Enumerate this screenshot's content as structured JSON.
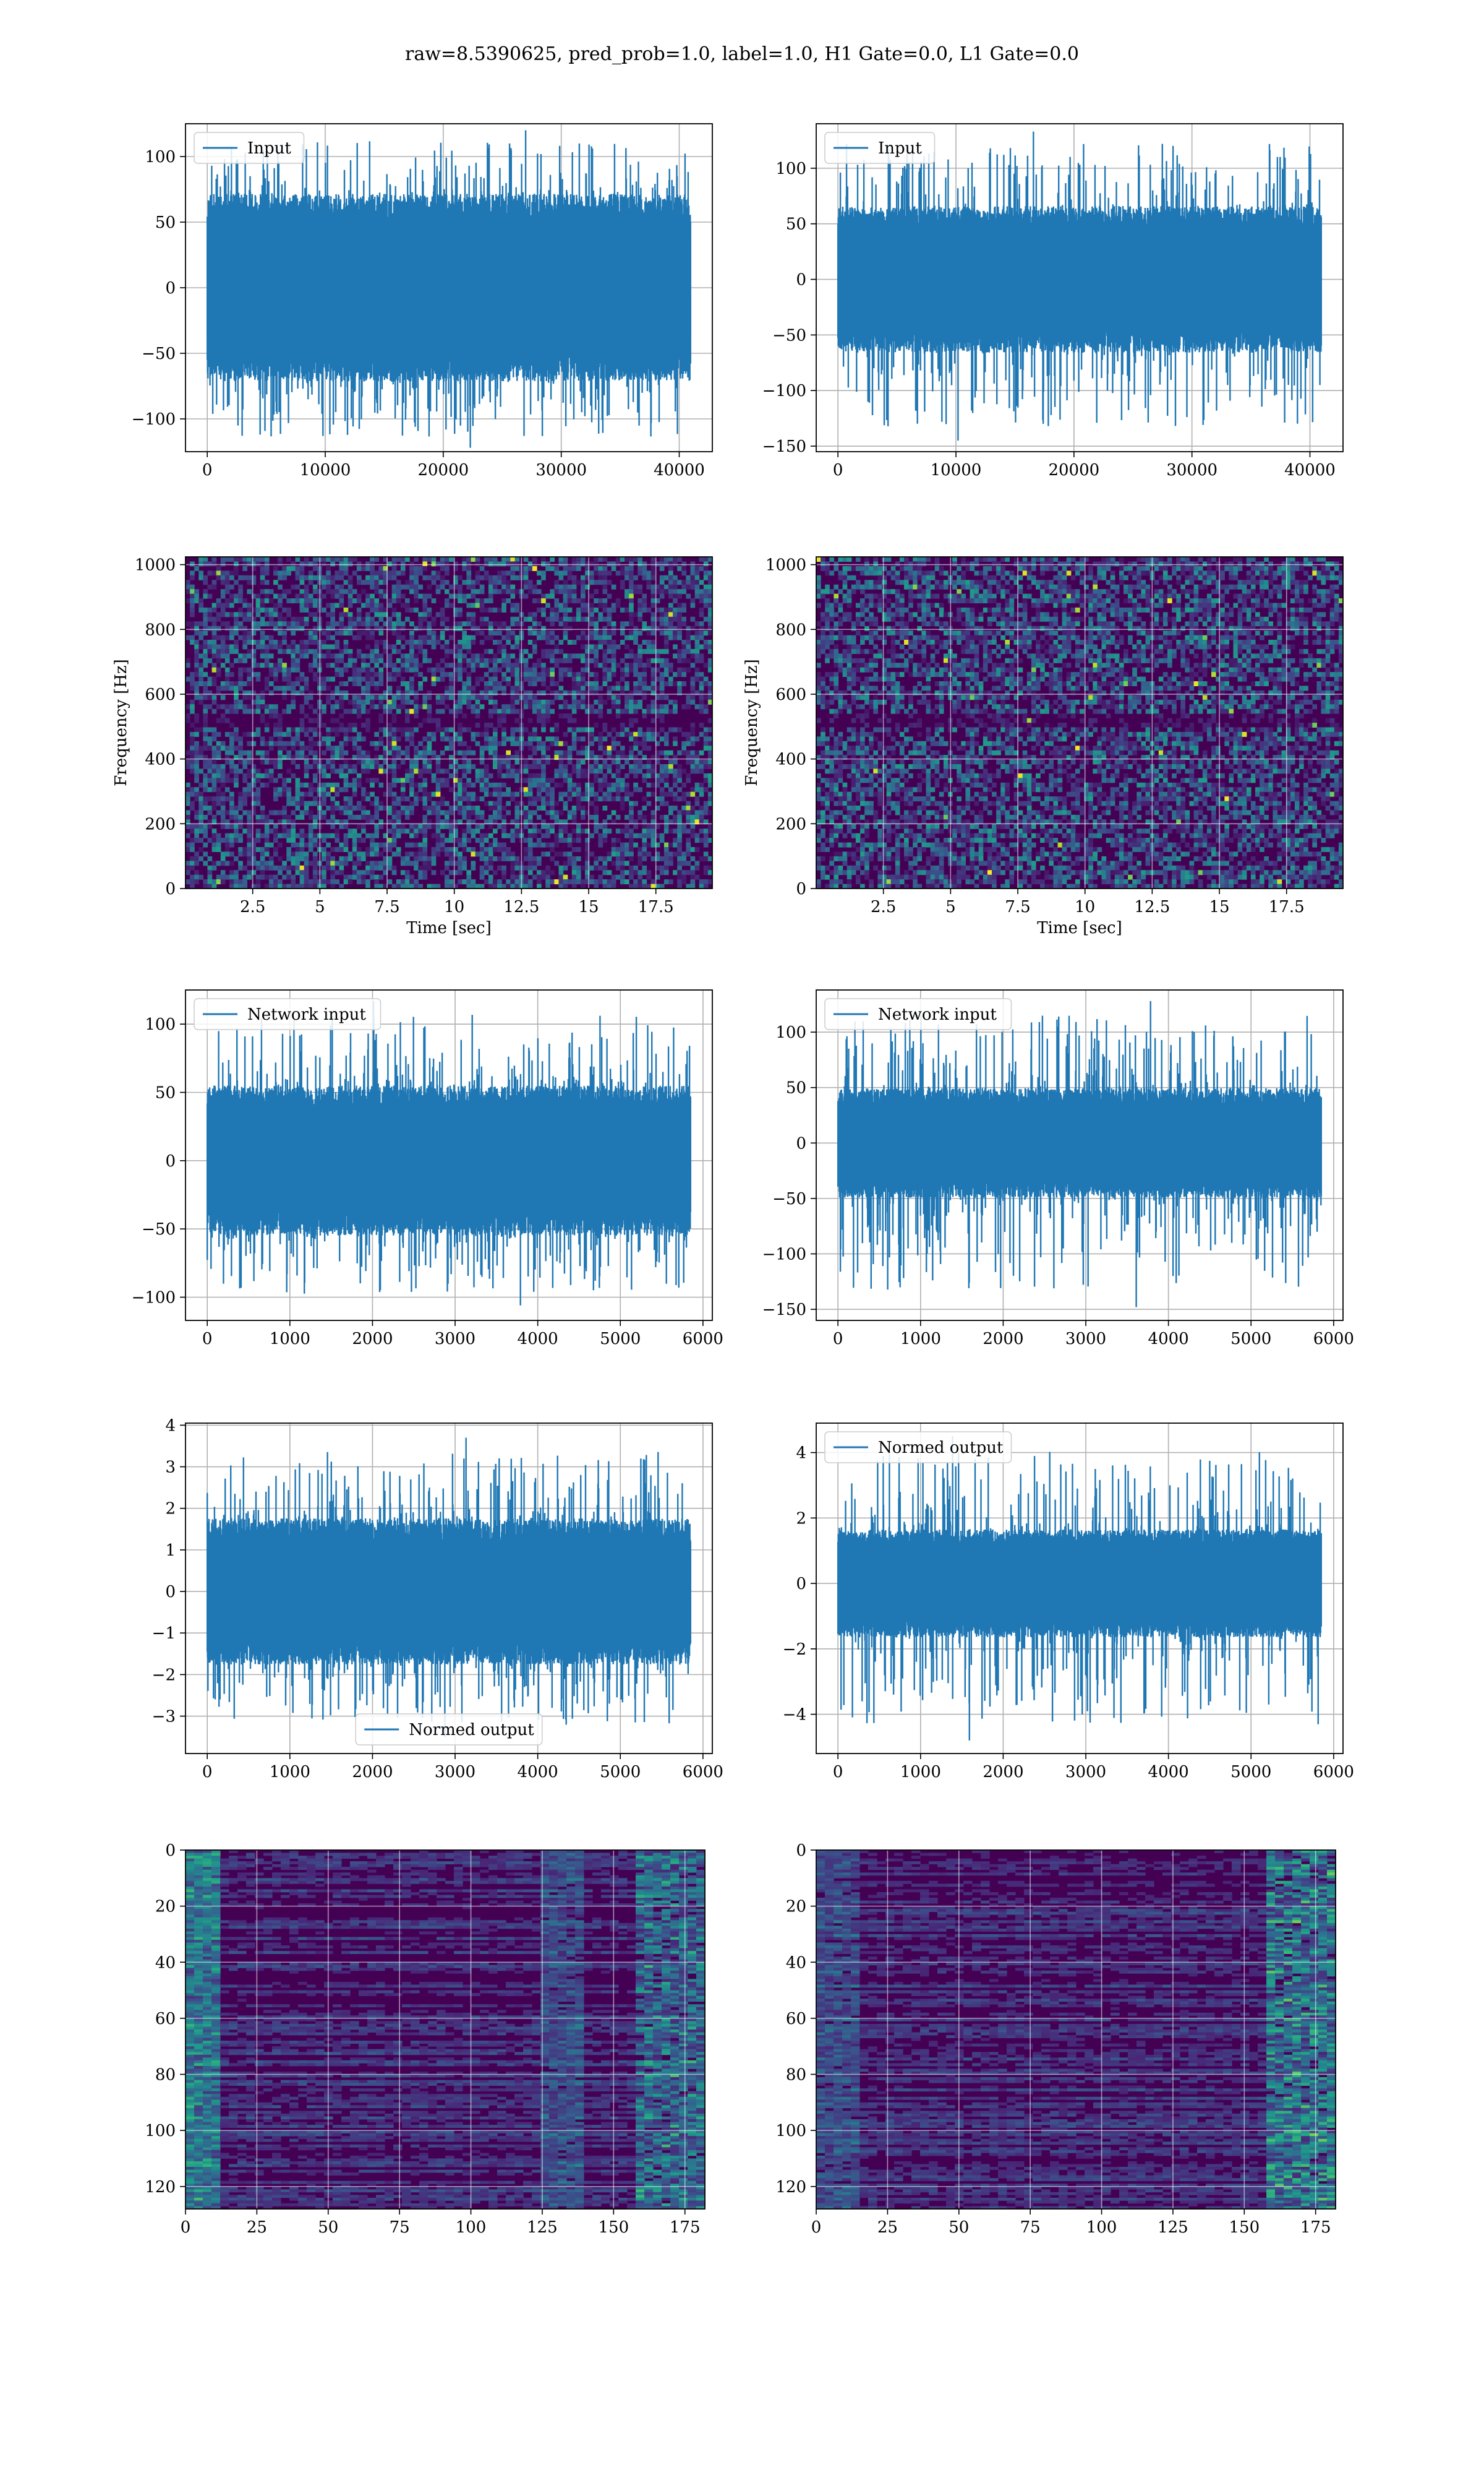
{
  "title": "raw=8.5390625, pred_prob=1.0, label=1.0, H1 Gate=0.0, L1 Gate=0.0",
  "colors": {
    "line": "#1f77b4",
    "grid": "#b0b0b0",
    "viridis_dark": "#440154",
    "viridis_mid": "#21918c",
    "viridis_light": "#fde725"
  },
  "chart_data": [
    {
      "type": "line",
      "legend": "Input",
      "legend_loc": "upper-left",
      "x_range": [
        0,
        40960
      ],
      "ylim": [
        -125,
        125
      ],
      "xticks": [
        0,
        10000,
        20000,
        30000,
        40000
      ],
      "yticks": [
        -100,
        -50,
        0,
        50,
        100
      ],
      "grid": true,
      "amplitude": {
        "core": 65,
        "peak_max": 120,
        "peak_min": -122
      }
    },
    {
      "type": "line",
      "legend": "Input",
      "legend_loc": "upper-left",
      "x_range": [
        0,
        40960
      ],
      "ylim": [
        -155,
        140
      ],
      "xticks": [
        0,
        10000,
        20000,
        30000,
        40000
      ],
      "yticks": [
        -150,
        -100,
        -50,
        0,
        50,
        100
      ],
      "grid": true,
      "amplitude": {
        "core": 60,
        "peak_max": 133,
        "peak_min": -145
      }
    },
    {
      "type": "heatmap",
      "ylabel": "Frequency [Hz]",
      "xlabel": "Time [sec]",
      "xlim": [
        0,
        19.6
      ],
      "ylim": [
        0,
        1024
      ],
      "xticks": [
        2.5,
        5.0,
        7.5,
        10.0,
        12.5,
        15.0,
        17.5
      ],
      "yticks": [
        0,
        200,
        400,
        600,
        800,
        1000
      ],
      "grid": true,
      "colormap": "viridis"
    },
    {
      "type": "heatmap",
      "ylabel": "Frequency [Hz]",
      "xlabel": "Time [sec]",
      "xlim": [
        0,
        19.6
      ],
      "ylim": [
        0,
        1024
      ],
      "xticks": [
        2.5,
        5.0,
        7.5,
        10.0,
        12.5,
        15.0,
        17.5
      ],
      "yticks": [
        0,
        200,
        400,
        600,
        800,
        1000
      ],
      "grid": true,
      "colormap": "viridis"
    },
    {
      "type": "line",
      "legend": "Network input",
      "legend_loc": "upper-left",
      "x_range": [
        0,
        5850
      ],
      "ylim": [
        -117,
        125
      ],
      "xticks": [
        0,
        1000,
        2000,
        3000,
        4000,
        5000,
        6000
      ],
      "yticks": [
        -100,
        -50,
        0,
        50,
        100
      ],
      "grid": true,
      "amplitude": {
        "core": 50,
        "peak_max": 117,
        "peak_min": -106
      }
    },
    {
      "type": "line",
      "legend": "Network input",
      "legend_loc": "upper-left",
      "x_range": [
        0,
        5850
      ],
      "ylim": [
        -160,
        138
      ],
      "xticks": [
        0,
        1000,
        2000,
        3000,
        4000,
        5000,
        6000
      ],
      "yticks": [
        -150,
        -100,
        -50,
        0,
        50,
        100
      ],
      "grid": true,
      "amplitude": {
        "core": 45,
        "peak_max": 128,
        "peak_min": -148
      }
    },
    {
      "type": "line",
      "legend": "Normed output",
      "legend_loc": "lower-center",
      "x_range": [
        0,
        5850
      ],
      "ylim": [
        -3.9,
        4.05
      ],
      "xticks": [
        0,
        1000,
        2000,
        3000,
        4000,
        5000,
        6000
      ],
      "yticks": [
        -3,
        -2,
        -1,
        0,
        1,
        2,
        3,
        4
      ],
      "grid": true,
      "amplitude": {
        "core": 1.6,
        "peak_max": 3.7,
        "peak_min": -3.5
      }
    },
    {
      "type": "line",
      "legend": "Normed output",
      "legend_loc": "upper-left",
      "x_range": [
        0,
        5850
      ],
      "ylim": [
        -5.2,
        4.9
      ],
      "xticks": [
        0,
        1000,
        2000,
        3000,
        4000,
        5000,
        6000
      ],
      "yticks": [
        -4,
        -2,
        0,
        2,
        4
      ],
      "grid": true,
      "amplitude": {
        "core": 1.5,
        "peak_max": 4.5,
        "peak_min": -4.8
      }
    },
    {
      "type": "heatmap",
      "xlim": [
        0,
        182
      ],
      "ylim": [
        128,
        0
      ],
      "xticks": [
        0,
        25,
        50,
        75,
        100,
        125,
        150,
        175
      ],
      "yticks": [
        0,
        20,
        40,
        60,
        80,
        100,
        120
      ],
      "grid": true,
      "colormap": "viridis"
    },
    {
      "type": "heatmap",
      "xlim": [
        0,
        182
      ],
      "ylim": [
        128,
        0
      ],
      "xticks": [
        0,
        25,
        50,
        75,
        100,
        125,
        150,
        175
      ],
      "yticks": [
        0,
        20,
        40,
        60,
        80,
        100,
        120
      ],
      "grid": true,
      "colormap": "viridis"
    }
  ]
}
